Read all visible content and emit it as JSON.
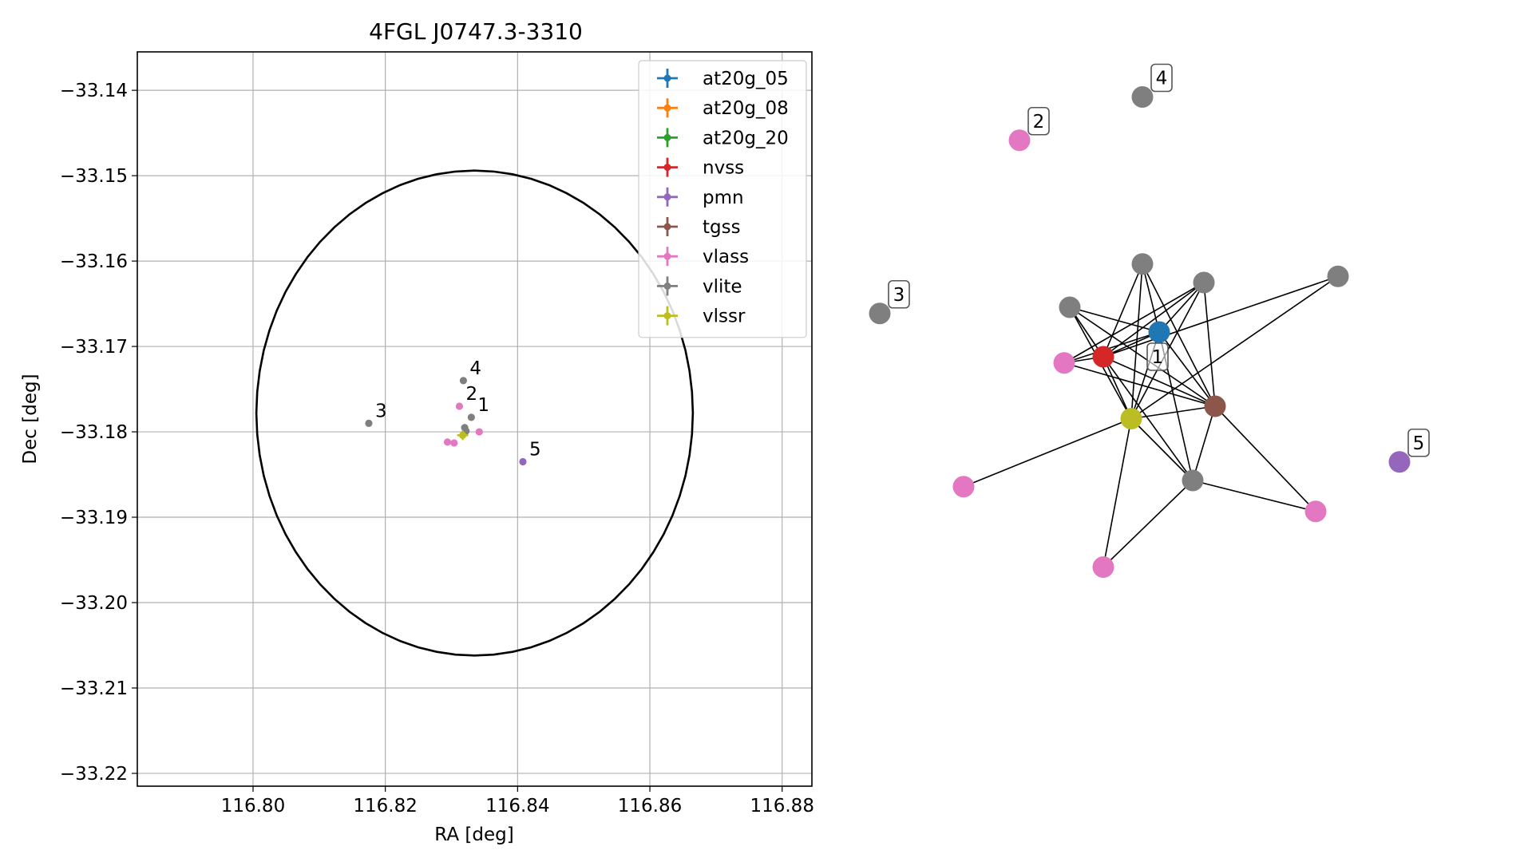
{
  "chart_data": [
    {
      "type": "scatter",
      "title": "4FGL J0747.3-3310",
      "xlabel": "RA [deg]",
      "ylabel": "Dec [deg]",
      "xlim": [
        116.7825,
        116.8845
      ],
      "ylim": [
        -33.2215,
        -33.1355
      ],
      "xticks": [
        116.8,
        116.82,
        116.84,
        116.86,
        116.88
      ],
      "xtick_labels": [
        "116.80",
        "116.82",
        "116.84",
        "116.86",
        "116.88"
      ],
      "yticks": [
        -33.14,
        -33.15,
        -33.16,
        -33.17,
        -33.18,
        -33.19,
        -33.2,
        -33.21,
        -33.22
      ],
      "ytick_labels": [
        "−33.14",
        "−33.15",
        "−33.16",
        "−33.17",
        "−33.18",
        "−33.19",
        "−33.20",
        "−33.21",
        "−33.22"
      ],
      "grid": true,
      "legend_position": "top-right",
      "ellipse": {
        "center": [
          116.8335,
          -33.1778
        ],
        "semi_axis_ra": 0.033,
        "semi_axis_dec": 0.0284,
        "color": "#000000"
      },
      "series": [
        {
          "name": "at20g_05",
          "color": "#1f77b4",
          "points": []
        },
        {
          "name": "at20g_08",
          "color": "#ff7f0e",
          "points": []
        },
        {
          "name": "at20g_20",
          "color": "#2ca02c",
          "points": []
        },
        {
          "name": "nvss",
          "color": "#d62728",
          "points": []
        },
        {
          "name": "pmn",
          "color": "#9467bd",
          "points": [
            [
              116.8408,
              -33.1835
            ]
          ]
        },
        {
          "name": "tgss",
          "color": "#8c564b",
          "points": []
        },
        {
          "name": "vlass",
          "color": "#e377c2",
          "points": [
            [
              116.8312,
              -33.177
            ],
            [
              116.8342,
              -33.18
            ],
            [
              116.8294,
              -33.1812
            ],
            [
              116.8304,
              -33.1813
            ]
          ]
        },
        {
          "name": "vlite",
          "color": "#7f7f7f",
          "points": [
            [
              116.8318,
              -33.174
            ],
            [
              116.833,
              -33.1783
            ],
            [
              116.8175,
              -33.179
            ],
            [
              116.832,
              -33.1795
            ],
            [
              116.8322,
              -33.1799
            ]
          ]
        },
        {
          "name": "vlssr",
          "color": "#bcbd22",
          "points": [
            [
              116.8317,
              -33.1804
            ]
          ]
        }
      ],
      "annotations": [
        {
          "text": "4",
          "x": 116.8318,
          "y": -33.174
        },
        {
          "text": "2",
          "x": 116.8312,
          "y": -33.177
        },
        {
          "text": "1",
          "x": 116.833,
          "y": -33.1783
        },
        {
          "text": "3",
          "x": 116.8175,
          "y": -33.179
        },
        {
          "text": "5",
          "x": 116.8408,
          "y": -33.1835
        }
      ]
    },
    {
      "type": "network",
      "nodes": [
        {
          "id": "n_blue",
          "color": "#1f77b4",
          "x": 0.5,
          "y": 0.44
        },
        {
          "id": "n_red",
          "color": "#d62728",
          "x": 0.4,
          "y": 0.48
        },
        {
          "id": "n_pink1",
          "color": "#e377c2",
          "x": 0.33,
          "y": 0.49
        },
        {
          "id": "n_olive",
          "color": "#bcbd22",
          "x": 0.45,
          "y": 0.58
        },
        {
          "id": "n_brown",
          "color": "#8c564b",
          "x": 0.6,
          "y": 0.56
        },
        {
          "id": "n_gray1",
          "color": "#7f7f7f",
          "x": 0.47,
          "y": 0.33
        },
        {
          "id": "n_gray2",
          "color": "#7f7f7f",
          "x": 0.58,
          "y": 0.36
        },
        {
          "id": "n_gray3",
          "color": "#7f7f7f",
          "x": 0.34,
          "y": 0.4
        },
        {
          "id": "n_gray4",
          "color": "#7f7f7f",
          "x": 0.82,
          "y": 0.35
        },
        {
          "id": "n_gray5",
          "color": "#7f7f7f",
          "x": 0.56,
          "y": 0.68
        },
        {
          "id": "n_pink2",
          "color": "#e377c2",
          "x": 0.15,
          "y": 0.69
        },
        {
          "id": "n_pink3",
          "color": "#e377c2",
          "x": 0.78,
          "y": 0.73
        },
        {
          "id": "n_pink4",
          "color": "#e377c2",
          "x": 0.4,
          "y": 0.82
        },
        {
          "id": "n4",
          "color": "#7f7f7f",
          "x": 0.47,
          "y": 0.06,
          "label": "4"
        },
        {
          "id": "n2",
          "color": "#e377c2",
          "x": 0.25,
          "y": 0.13,
          "label": "2"
        },
        {
          "id": "n3",
          "color": "#7f7f7f",
          "x": 0.0,
          "y": 0.41,
          "label": "3"
        },
        {
          "id": "n5",
          "color": "#9467bd",
          "x": 0.93,
          "y": 0.65,
          "label": "5"
        }
      ],
      "cluster_label": "1",
      "edges": [
        [
          "n_gray1",
          "n_red"
        ],
        [
          "n_gray1",
          "n_olive"
        ],
        [
          "n_gray1",
          "n_blue"
        ],
        [
          "n_gray1",
          "n_brown"
        ],
        [
          "n_gray2",
          "n_red"
        ],
        [
          "n_gray2",
          "n_olive"
        ],
        [
          "n_gray2",
          "n_blue"
        ],
        [
          "n_gray2",
          "n_brown"
        ],
        [
          "n_gray2",
          "n_pink1"
        ],
        [
          "n_gray3",
          "n_blue"
        ],
        [
          "n_gray3",
          "n_brown"
        ],
        [
          "n_gray3",
          "n_olive"
        ],
        [
          "n_gray3",
          "n_red"
        ],
        [
          "n_gray4",
          "n_red"
        ],
        [
          "n_gray4",
          "n_olive"
        ],
        [
          "n_red",
          "n_pink1"
        ],
        [
          "n_red",
          "n_blue"
        ],
        [
          "n_red",
          "n_brown"
        ],
        [
          "n_red",
          "n_gray5"
        ],
        [
          "n_red",
          "n_olive"
        ],
        [
          "n_pink1",
          "n_blue"
        ],
        [
          "n_pink1",
          "n_brown"
        ],
        [
          "n_olive",
          "n_blue"
        ],
        [
          "n_olive",
          "n_brown"
        ],
        [
          "n_olive",
          "n_pink2"
        ],
        [
          "n_olive",
          "n_pink4"
        ],
        [
          "n_olive",
          "n_gray5"
        ],
        [
          "n_blue",
          "n_brown"
        ],
        [
          "n_blue",
          "n_gray5"
        ],
        [
          "n_brown",
          "n_gray5"
        ],
        [
          "n_brown",
          "n_pink3"
        ],
        [
          "n_gray5",
          "n_pink4"
        ],
        [
          "n_gray5",
          "n_pink3"
        ]
      ]
    }
  ]
}
